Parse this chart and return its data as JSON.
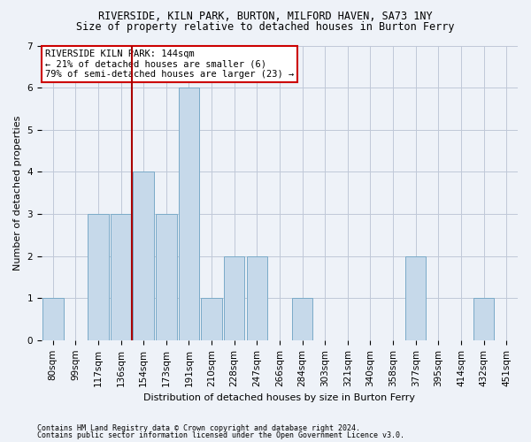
{
  "title1": "RIVERSIDE, KILN PARK, BURTON, MILFORD HAVEN, SA73 1NY",
  "title2": "Size of property relative to detached houses in Burton Ferry",
  "xlabel": "Distribution of detached houses by size in Burton Ferry",
  "ylabel": "Number of detached properties",
  "categories": [
    "80sqm",
    "99sqm",
    "117sqm",
    "136sqm",
    "154sqm",
    "173sqm",
    "191sqm",
    "210sqm",
    "228sqm",
    "247sqm",
    "266sqm",
    "284sqm",
    "303sqm",
    "321sqm",
    "340sqm",
    "358sqm",
    "377sqm",
    "395sqm",
    "414sqm",
    "432sqm",
    "451sqm"
  ],
  "values": [
    1,
    0,
    3,
    3,
    4,
    3,
    6,
    1,
    2,
    2,
    0,
    1,
    0,
    0,
    0,
    0,
    2,
    0,
    0,
    1,
    0
  ],
  "bar_color": "#c6d9ea",
  "bar_edge_color": "#7aaac8",
  "vline_color": "#aa0000",
  "vline_x_idx": 3.5,
  "annotation_text": "RIVERSIDE KILN PARK: 144sqm\n← 21% of detached houses are smaller (6)\n79% of semi-detached houses are larger (23) →",
  "annotation_box_facecolor": "#ffffff",
  "annotation_box_edgecolor": "#cc0000",
  "ylim": [
    0,
    7
  ],
  "yticks": [
    0,
    1,
    2,
    3,
    4,
    5,
    6,
    7
  ],
  "footer1": "Contains HM Land Registry data © Crown copyright and database right 2024.",
  "footer2": "Contains public sector information licensed under the Open Government Licence v3.0.",
  "background_color": "#eef2f8",
  "plot_bg_color": "#eef2f8",
  "title_fontsize": 8.5,
  "axis_label_fontsize": 8,
  "tick_fontsize": 7.5,
  "annotation_fontsize": 7.5,
  "footer_fontsize": 6.0
}
